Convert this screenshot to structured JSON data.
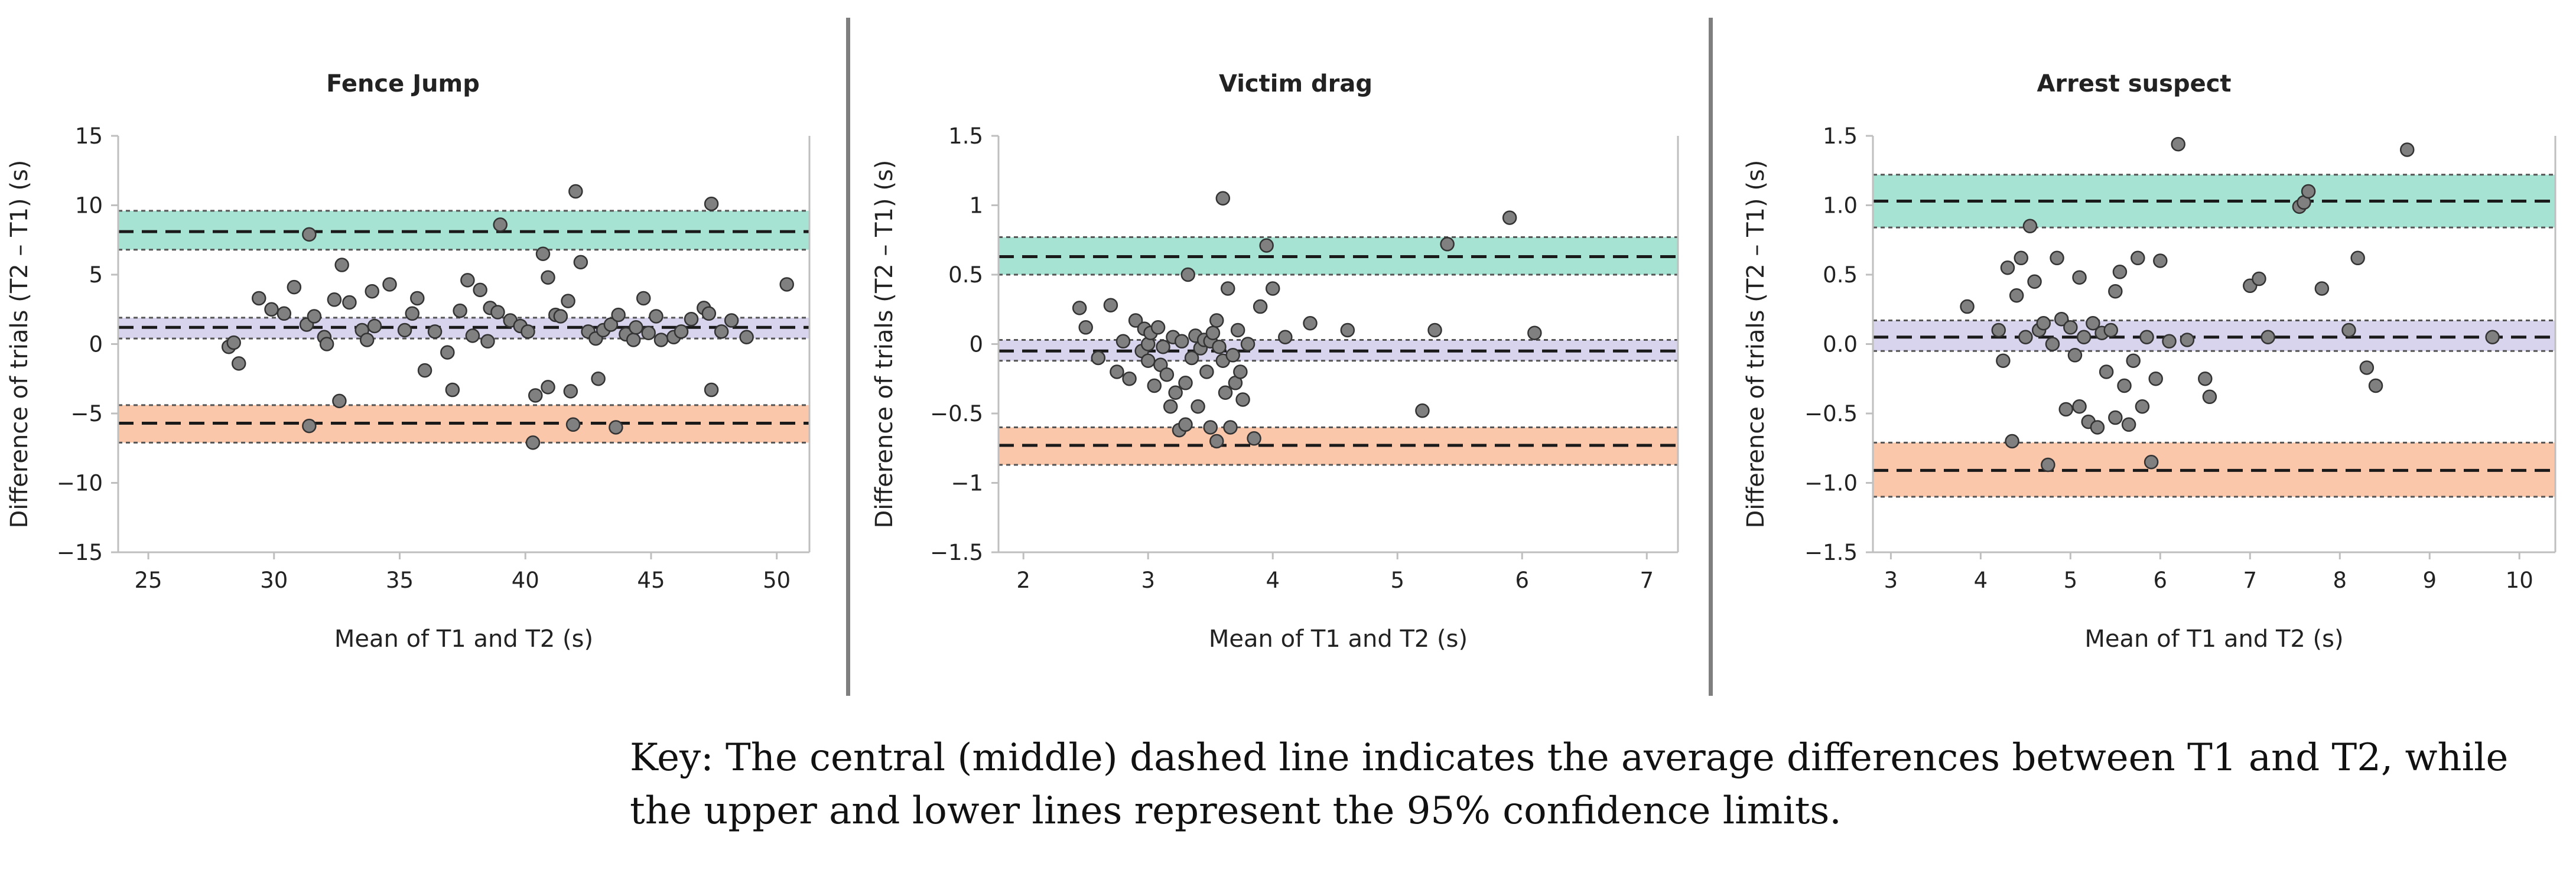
{
  "figure": {
    "key": {
      "line1": "Key: The central (middle) dashed line indicates the average differences between T1 and T2, while",
      "line2": "the upper and lower lines represent the 95% confidence limits."
    },
    "colors": {
      "upper_band": "#a6e3d3",
      "mean_band": "#d8d4ee",
      "lower_band": "#fac7ab",
      "points": "#808080"
    }
  },
  "chart_data": [
    {
      "type": "scatter",
      "title": "Fence Jump",
      "xlabel": "Mean of T1 and T2 (s)",
      "ylabel": "Difference of trials (T2 – T1) (s)",
      "xlim": [
        23.8,
        51.3
      ],
      "ylim": [
        -15,
        15
      ],
      "xticks": [
        25,
        30,
        35,
        40,
        45,
        50
      ],
      "xtick_labels": [
        "25",
        "30",
        "35",
        "40",
        "45",
        "50"
      ],
      "yticks": [
        -15,
        -10,
        -5,
        0,
        5,
        10,
        15
      ],
      "ytick_labels": [
        "−15",
        "−10",
        "−5",
        "0",
        "5",
        "10",
        "15"
      ],
      "limits": {
        "upper": {
          "center": 8.1,
          "low": 6.8,
          "high": 9.6
        },
        "mean": {
          "center": 1.2,
          "low": 0.4,
          "high": 1.9
        },
        "lower": {
          "center": -5.7,
          "low": -7.1,
          "high": -4.4
        }
      },
      "points": [
        [
          28.2,
          -0.2
        ],
        [
          28.6,
          -1.4
        ],
        [
          28.4,
          0.1
        ],
        [
          29.4,
          3.3
        ],
        [
          29.9,
          2.5
        ],
        [
          30.4,
          2.2
        ],
        [
          30.8,
          4.1
        ],
        [
          31.4,
          7.9
        ],
        [
          31.3,
          1.4
        ],
        [
          31.4,
          -5.9
        ],
        [
          31.6,
          2.0
        ],
        [
          32.0,
          0.5
        ],
        [
          32.1,
          0.0
        ],
        [
          32.4,
          3.2
        ],
        [
          32.7,
          5.7
        ],
        [
          32.6,
          -4.1
        ],
        [
          33.0,
          3.0
        ],
        [
          33.5,
          1.0
        ],
        [
          33.7,
          0.3
        ],
        [
          33.9,
          3.8
        ],
        [
          34.0,
          1.3
        ],
        [
          34.6,
          4.3
        ],
        [
          35.2,
          1.0
        ],
        [
          35.5,
          2.2
        ],
        [
          35.7,
          3.3
        ],
        [
          36.0,
          -1.9
        ],
        [
          36.4,
          0.9
        ],
        [
          36.9,
          -0.6
        ],
        [
          37.1,
          -3.3
        ],
        [
          37.4,
          2.4
        ],
        [
          37.7,
          4.6
        ],
        [
          37.9,
          0.6
        ],
        [
          38.2,
          3.9
        ],
        [
          38.5,
          0.2
        ],
        [
          38.6,
          2.6
        ],
        [
          38.9,
          2.3
        ],
        [
          39.0,
          8.6
        ],
        [
          39.4,
          1.7
        ],
        [
          39.8,
          1.3
        ],
        [
          40.1,
          0.9
        ],
        [
          40.4,
          -3.7
        ],
        [
          40.3,
          -7.1
        ],
        [
          40.7,
          6.5
        ],
        [
          40.9,
          -3.1
        ],
        [
          40.9,
          4.8
        ],
        [
          41.2,
          2.1
        ],
        [
          41.4,
          2.0
        ],
        [
          41.7,
          3.1
        ],
        [
          41.9,
          -5.8
        ],
        [
          41.8,
          -3.4
        ],
        [
          42.0,
          11.0
        ],
        [
          42.2,
          5.9
        ],
        [
          42.5,
          0.9
        ],
        [
          42.8,
          0.4
        ],
        [
          42.9,
          -2.5
        ],
        [
          43.1,
          1.0
        ],
        [
          43.4,
          1.4
        ],
        [
          43.6,
          -6.0
        ],
        [
          43.7,
          2.1
        ],
        [
          44.0,
          0.7
        ],
        [
          44.3,
          0.3
        ],
        [
          44.4,
          1.2
        ],
        [
          44.7,
          3.3
        ],
        [
          44.9,
          0.8
        ],
        [
          45.2,
          2.0
        ],
        [
          45.4,
          0.3
        ],
        [
          45.9,
          0.5
        ],
        [
          46.2,
          0.9
        ],
        [
          46.6,
          1.8
        ],
        [
          47.1,
          2.6
        ],
        [
          47.3,
          2.2
        ],
        [
          47.4,
          -3.3
        ],
        [
          47.4,
          10.1
        ],
        [
          47.8,
          0.9
        ],
        [
          48.2,
          1.7
        ],
        [
          48.8,
          0.5
        ],
        [
          50.4,
          4.3
        ]
      ]
    },
    {
      "type": "scatter",
      "title": "Victim drag",
      "xlabel": "Mean of T1 and T2 (s)",
      "ylabel": "Difference of trials  (T2 – T1) (s)",
      "xlim": [
        1.8,
        7.25
      ],
      "ylim": [
        -1.5,
        1.5
      ],
      "xticks": [
        2,
        3,
        4,
        5,
        6,
        7
      ],
      "xtick_labels": [
        "2",
        "3",
        "4",
        "5",
        "6",
        "7"
      ],
      "yticks": [
        -1.5,
        -1,
        -0.5,
        0,
        0.5,
        1,
        1.5
      ],
      "ytick_labels": [
        "−1.5",
        "−1",
        "−0.5",
        "0",
        "0.5",
        "1",
        "1.5"
      ],
      "limits": {
        "upper": {
          "center": 0.63,
          "low": 0.5,
          "high": 0.77
        },
        "mean": {
          "center": -0.05,
          "low": -0.12,
          "high": 0.03
        },
        "lower": {
          "center": -0.73,
          "low": -0.87,
          "high": -0.6
        }
      },
      "points": [
        [
          2.45,
          0.26
        ],
        [
          2.5,
          0.12
        ],
        [
          2.6,
          -0.1
        ],
        [
          2.7,
          0.28
        ],
        [
          2.75,
          -0.2
        ],
        [
          2.8,
          0.02
        ],
        [
          2.85,
          -0.25
        ],
        [
          2.9,
          0.17
        ],
        [
          2.95,
          -0.05
        ],
        [
          2.97,
          0.11
        ],
        [
          3.0,
          0.0
        ],
        [
          3.0,
          -0.12
        ],
        [
          3.02,
          0.08
        ],
        [
          3.05,
          -0.3
        ],
        [
          3.08,
          0.12
        ],
        [
          3.1,
          -0.15
        ],
        [
          3.12,
          -0.02
        ],
        [
          3.15,
          -0.22
        ],
        [
          3.18,
          -0.45
        ],
        [
          3.2,
          0.05
        ],
        [
          3.22,
          -0.35
        ],
        [
          3.25,
          -0.62
        ],
        [
          3.27,
          0.02
        ],
        [
          3.3,
          -0.58
        ],
        [
          3.3,
          -0.28
        ],
        [
          3.32,
          0.5
        ],
        [
          3.35,
          -0.1
        ],
        [
          3.38,
          0.06
        ],
        [
          3.4,
          -0.45
        ],
        [
          3.42,
          -0.03
        ],
        [
          3.45,
          0.03
        ],
        [
          3.47,
          -0.2
        ],
        [
          3.5,
          -0.6
        ],
        [
          3.5,
          0.02
        ],
        [
          3.52,
          0.08
        ],
        [
          3.55,
          -0.7
        ],
        [
          3.55,
          0.17
        ],
        [
          3.57,
          -0.02
        ],
        [
          3.6,
          1.05
        ],
        [
          3.6,
          -0.12
        ],
        [
          3.62,
          -0.35
        ],
        [
          3.64,
          0.4
        ],
        [
          3.66,
          -0.6
        ],
        [
          3.68,
          -0.08
        ],
        [
          3.7,
          -0.28
        ],
        [
          3.72,
          0.1
        ],
        [
          3.74,
          -0.2
        ],
        [
          3.76,
          -0.4
        ],
        [
          3.8,
          0.0
        ],
        [
          3.85,
          -0.68
        ],
        [
          3.9,
          0.27
        ],
        [
          3.95,
          0.71
        ],
        [
          4.0,
          0.4
        ],
        [
          4.1,
          0.05
        ],
        [
          4.3,
          0.15
        ],
        [
          4.6,
          0.1
        ],
        [
          5.2,
          -0.48
        ],
        [
          5.3,
          0.1
        ],
        [
          5.4,
          0.72
        ],
        [
          5.9,
          0.91
        ],
        [
          6.1,
          0.08
        ]
      ]
    },
    {
      "type": "scatter",
      "title": "Arrest suspect",
      "xlabel": "Mean of T1 and T2 (s)",
      "ylabel": "Difference of trials  (T2 – T1) (s)",
      "xlim": [
        2.8,
        10.4
      ],
      "ylim": [
        -1.5,
        1.5
      ],
      "xticks": [
        3,
        4,
        5,
        6,
        7,
        8,
        9,
        10
      ],
      "xtick_labels": [
        "3",
        "4",
        "5",
        "6",
        "7",
        "8",
        "9",
        "10"
      ],
      "yticks": [
        -1.5,
        -1.0,
        -0.5,
        0.0,
        0.5,
        1.0,
        1.5
      ],
      "ytick_labels": [
        "−1.5",
        "−1.0",
        "−0.5",
        "0.0",
        "0.5",
        "1.0",
        "1.5"
      ],
      "limits": {
        "upper": {
          "center": 1.03,
          "low": 0.84,
          "high": 1.22
        },
        "mean": {
          "center": 0.05,
          "low": -0.05,
          "high": 0.17
        },
        "lower": {
          "center": -0.91,
          "low": -1.1,
          "high": -0.71
        }
      },
      "points": [
        [
          3.85,
          0.27
        ],
        [
          4.2,
          0.1
        ],
        [
          4.25,
          -0.12
        ],
        [
          4.3,
          0.55
        ],
        [
          4.35,
          -0.7
        ],
        [
          4.4,
          0.35
        ],
        [
          4.45,
          0.62
        ],
        [
          4.5,
          0.05
        ],
        [
          4.55,
          0.85
        ],
        [
          4.6,
          0.45
        ],
        [
          4.65,
          0.1
        ],
        [
          4.7,
          0.15
        ],
        [
          4.75,
          -0.87
        ],
        [
          4.8,
          0.0
        ],
        [
          4.85,
          0.62
        ],
        [
          4.9,
          0.18
        ],
        [
          4.95,
          -0.47
        ],
        [
          5.0,
          0.12
        ],
        [
          5.05,
          -0.08
        ],
        [
          5.1,
          0.48
        ],
        [
          5.1,
          -0.45
        ],
        [
          5.15,
          0.05
        ],
        [
          5.2,
          -0.56
        ],
        [
          5.25,
          0.15
        ],
        [
          5.3,
          -0.6
        ],
        [
          5.35,
          0.08
        ],
        [
          5.4,
          -0.2
        ],
        [
          5.45,
          0.1
        ],
        [
          5.5,
          -0.53
        ],
        [
          5.5,
          0.38
        ],
        [
          5.55,
          0.52
        ],
        [
          5.6,
          -0.3
        ],
        [
          5.65,
          -0.58
        ],
        [
          5.7,
          -0.12
        ],
        [
          5.75,
          0.62
        ],
        [
          5.8,
          -0.45
        ],
        [
          5.85,
          0.05
        ],
        [
          5.9,
          -0.85
        ],
        [
          5.95,
          -0.25
        ],
        [
          6.0,
          0.6
        ],
        [
          6.1,
          0.02
        ],
        [
          6.2,
          1.44
        ],
        [
          6.3,
          0.03
        ],
        [
          6.5,
          -0.25
        ],
        [
          6.55,
          -0.38
        ],
        [
          7.0,
          0.42
        ],
        [
          7.1,
          0.47
        ],
        [
          7.2,
          0.05
        ],
        [
          7.55,
          0.99
        ],
        [
          7.6,
          1.02
        ],
        [
          7.65,
          1.1
        ],
        [
          7.8,
          0.4
        ],
        [
          8.1,
          0.1
        ],
        [
          8.2,
          0.62
        ],
        [
          8.3,
          -0.17
        ],
        [
          8.4,
          -0.3
        ],
        [
          8.75,
          1.4
        ],
        [
          9.7,
          0.05
        ]
      ]
    }
  ]
}
